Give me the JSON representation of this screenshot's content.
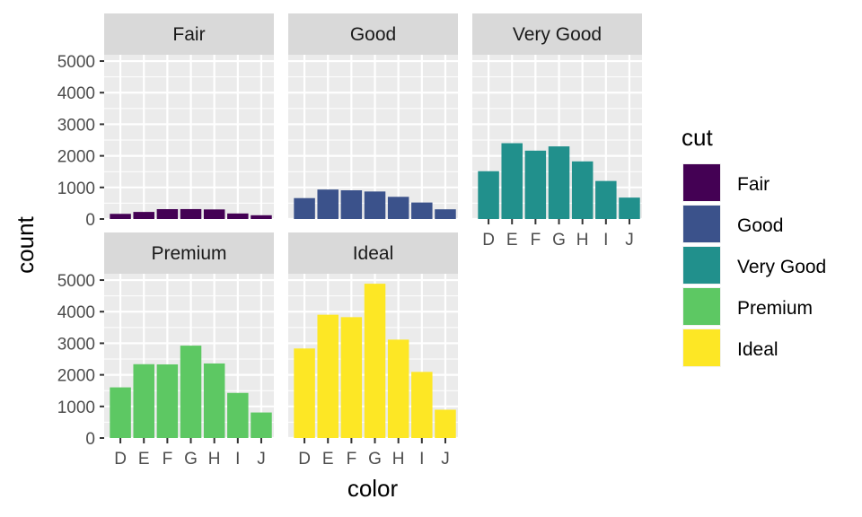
{
  "chart_data": {
    "type": "bar",
    "facet_by": "cut",
    "xlabel": "color",
    "ylabel": "count",
    "categories": [
      "D",
      "E",
      "F",
      "G",
      "H",
      "I",
      "J"
    ],
    "y_ticks": [
      0,
      1000,
      2000,
      3000,
      4000,
      5000
    ],
    "ylim": [
      0,
      5200
    ],
    "grid": true,
    "legend": {
      "title": "cut",
      "placement": "right",
      "entries": [
        {
          "label": "Fair",
          "color": "#440154"
        },
        {
          "label": "Good",
          "color": "#3B528B"
        },
        {
          "label": "Very Good",
          "color": "#21908C"
        },
        {
          "label": "Premium",
          "color": "#5DC863"
        },
        {
          "label": "Ideal",
          "color": "#FDE725"
        }
      ]
    },
    "series": [
      {
        "name": "Fair",
        "color": "#440154",
        "values": [
          163,
          224,
          312,
          314,
          303,
          175,
          119
        ]
      },
      {
        "name": "Good",
        "color": "#3B528B",
        "values": [
          662,
          933,
          909,
          871,
          702,
          522,
          307
        ]
      },
      {
        "name": "Very Good",
        "color": "#21908C",
        "values": [
          1513,
          2400,
          2164,
          2299,
          1824,
          1204,
          678
        ]
      },
      {
        "name": "Premium",
        "color": "#5DC863",
        "values": [
          1603,
          2337,
          2331,
          2924,
          2360,
          1428,
          808
        ]
      },
      {
        "name": "Ideal",
        "color": "#FDE725",
        "values": [
          2834,
          3903,
          3826,
          4884,
          3115,
          2093,
          896
        ]
      }
    ]
  }
}
